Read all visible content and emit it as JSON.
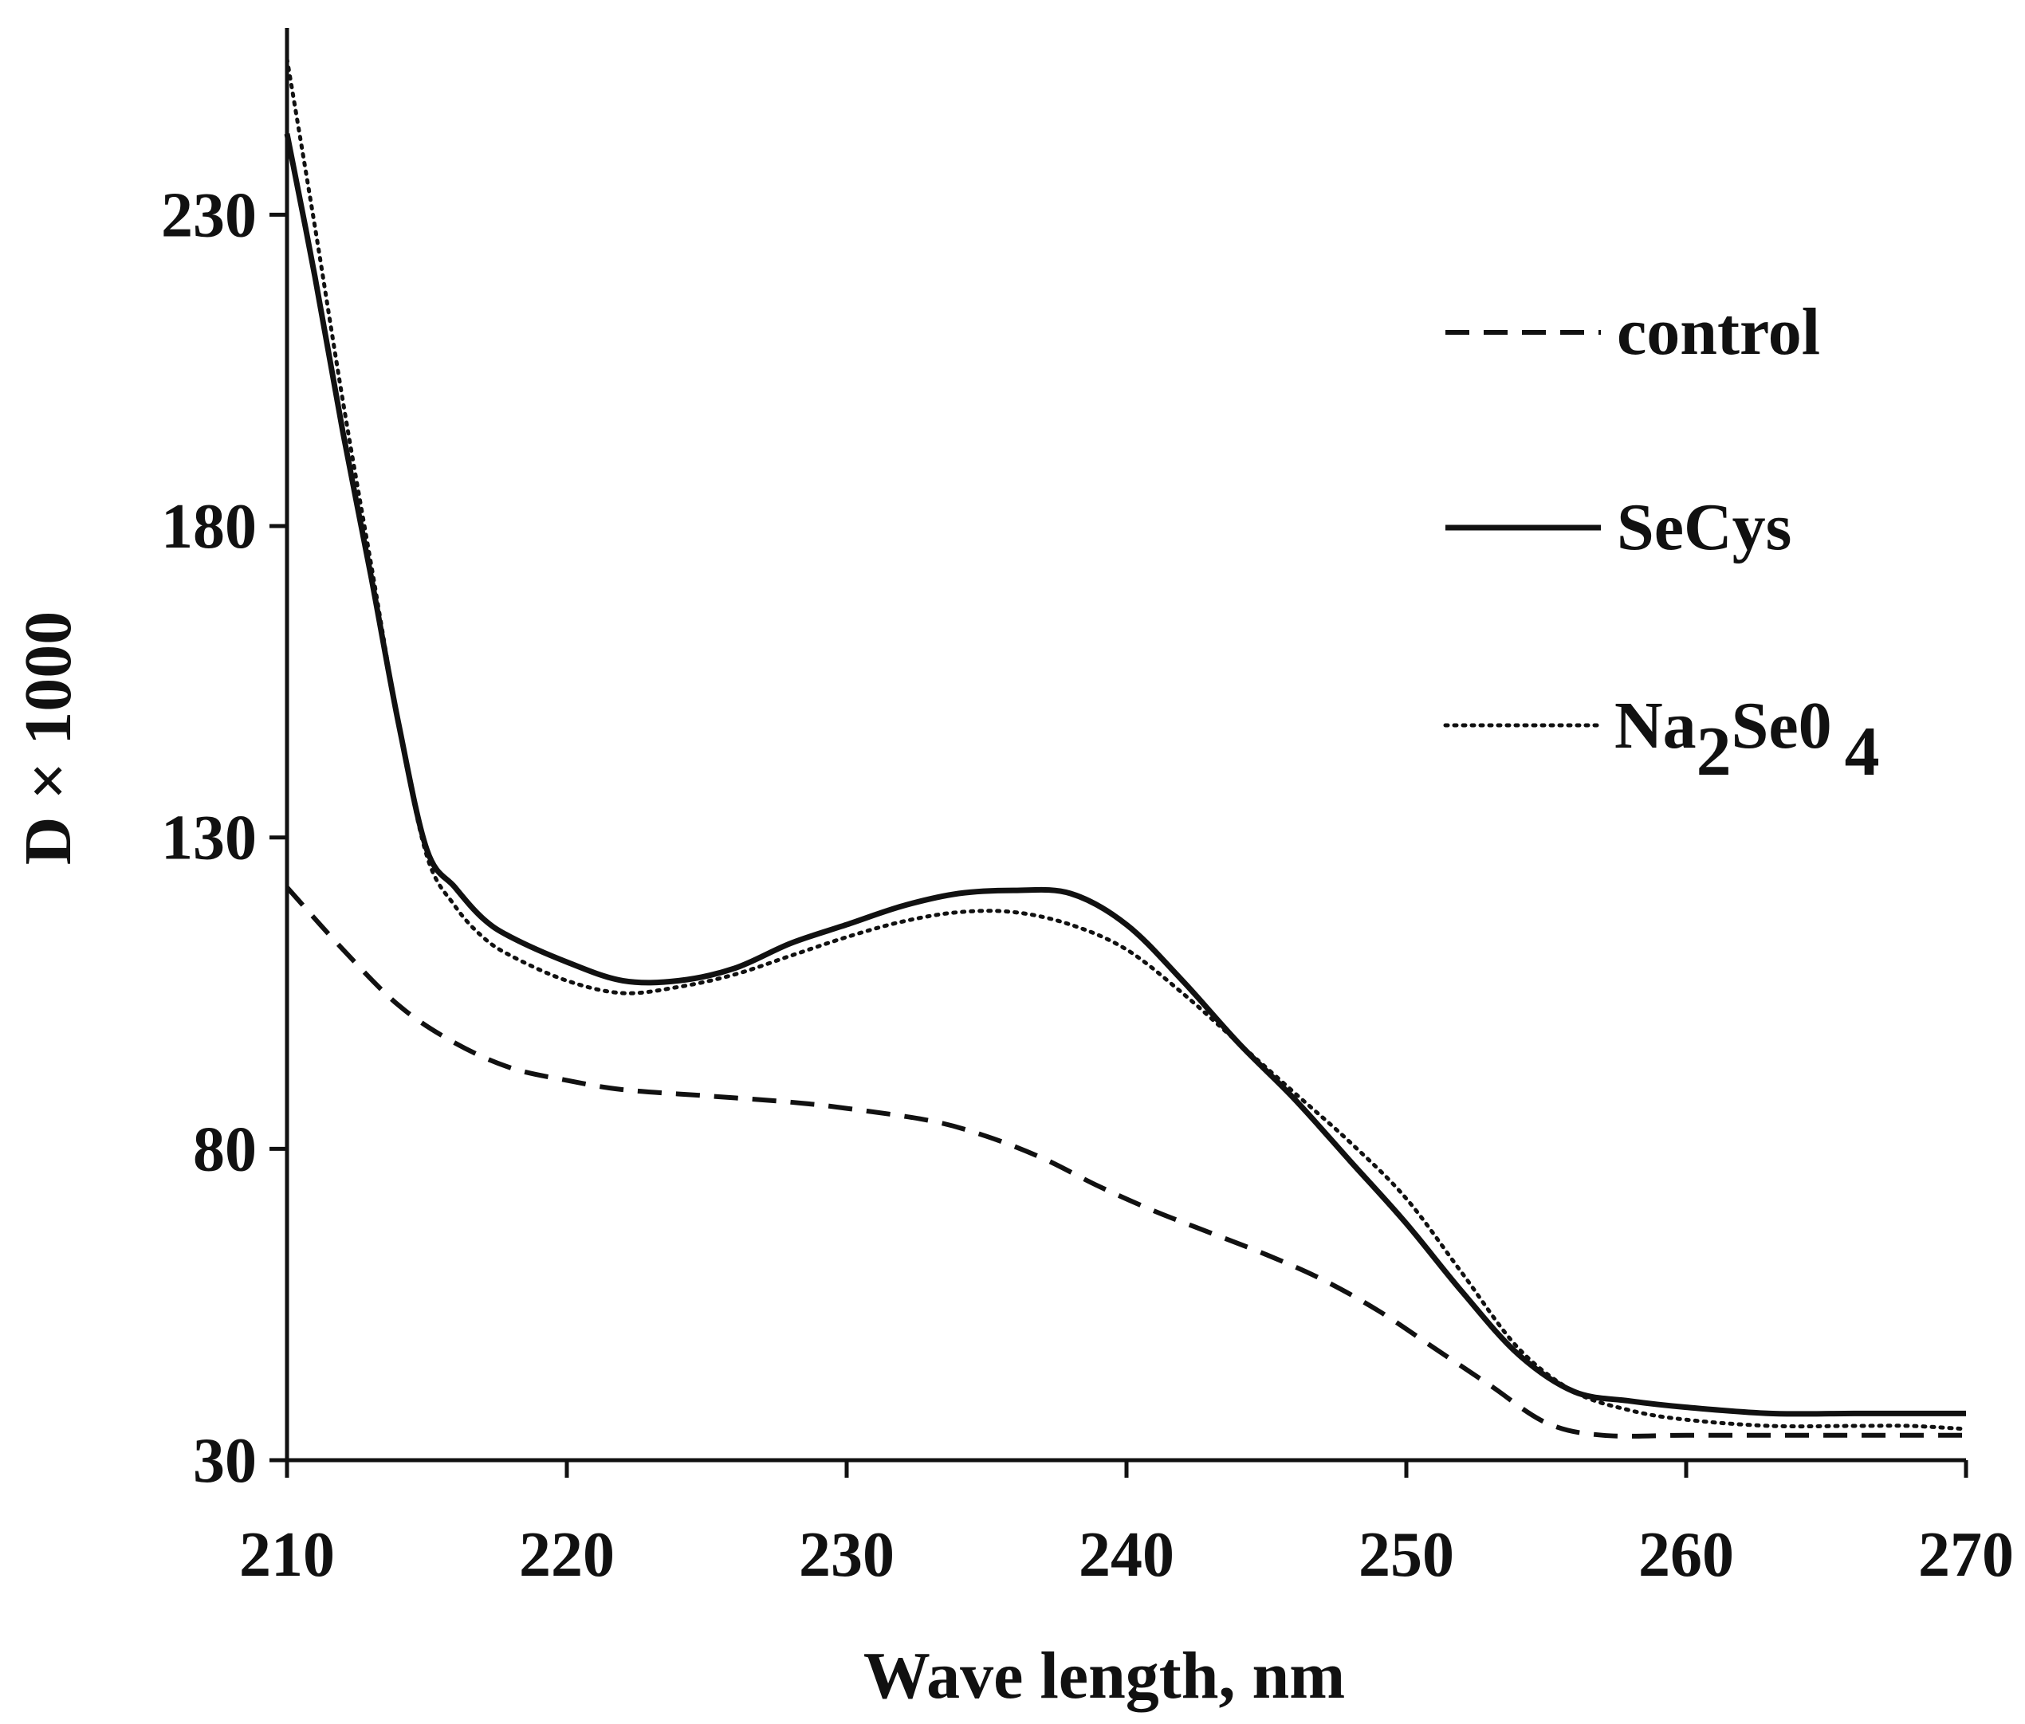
{
  "chart_data": {
    "type": "line",
    "title": "",
    "xlabel": "Wave length, nm",
    "ylabel": "D × 1000",
    "xlim": [
      210,
      270
    ],
    "ylim": [
      30,
      260
    ],
    "xticks": [
      210,
      220,
      230,
      240,
      250,
      260,
      270
    ],
    "yticks": [
      30,
      80,
      130,
      180,
      230
    ],
    "grid": false,
    "legend_position": "top-right",
    "legend": {
      "control": "control",
      "secys": "SeCys",
      "na2seo4_base": "Na",
      "na2seo4_sub1": "2",
      "na2seo4_mid": "Se0",
      "na2seo4_sub2": "4"
    },
    "series": [
      {
        "name": "control",
        "style": "dashed",
        "color": "#111111",
        "x": [
          210,
          212,
          214,
          216,
          218,
          220,
          222,
          225,
          228,
          230,
          233,
          235,
          237,
          239,
          241,
          243,
          245,
          247,
          249,
          251,
          253,
          255,
          257,
          260,
          263,
          266,
          268,
          270
        ],
        "y": [
          122,
          112,
          103,
          97,
          93,
          91,
          89.5,
          88.5,
          87.5,
          86.5,
          84.5,
          82,
          78.5,
          74,
          70,
          66.5,
          63,
          59,
          54,
          48,
          42,
          36,
          34,
          34,
          34,
          34,
          34,
          34
        ]
      },
      {
        "name": "SeCys",
        "style": "solid",
        "color": "#111111",
        "x": [
          210,
          211,
          212,
          213,
          214,
          215,
          216,
          217,
          218,
          220,
          222,
          224,
          226,
          228,
          230,
          232,
          234,
          236,
          238,
          240,
          242,
          244,
          246,
          248,
          250,
          252,
          254,
          256,
          258,
          260,
          263,
          266,
          268,
          270
        ],
        "y": [
          243,
          220,
          195,
          172,
          148,
          128,
          122,
          117,
          114,
          110,
          107,
          107,
          109,
          113,
          116,
          119,
          121,
          121.5,
          121,
          116,
          107,
          97,
          88,
          78,
          68,
          57,
          47,
          41,
          39.5,
          38.5,
          37.5,
          37.5,
          37.5,
          37.5
        ]
      },
      {
        "name": "Na2Se04",
        "style": "dotted",
        "color": "#111111",
        "x": [
          210,
          211,
          212,
          213,
          214,
          215,
          216,
          217,
          218,
          220,
          222,
          224,
          226,
          228,
          230,
          232,
          234,
          236,
          238,
          240,
          242,
          244,
          246,
          248,
          250,
          252,
          254,
          256,
          258,
          260,
          263,
          266,
          268,
          270
        ],
        "y": [
          255,
          228,
          200,
          174,
          148,
          127,
          119,
          114,
          111,
          107,
          105,
          106,
          108,
          111,
          114,
          116.5,
          118,
          118,
          116,
          112,
          105,
          97,
          89,
          81,
          72,
          60,
          48,
          41,
          38,
          36.5,
          35.5,
          35.5,
          35.5,
          35
        ]
      }
    ]
  }
}
